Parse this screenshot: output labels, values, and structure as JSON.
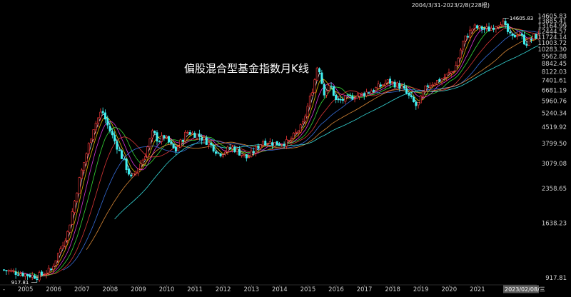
{
  "chart_data": {
    "type": "candlestick",
    "title": "偏股混合型基金指数月K线",
    "range_label": "2004/3/31-2023/2/8(228根)",
    "y_scale": "log",
    "ylim": [
      872,
      15600
    ],
    "y_ticks": [
      917.81,
      1638.23,
      2358.65,
      3079.08,
      3799.5,
      4519.92,
      5240.34,
      5960.76,
      6681.19,
      7401.61,
      8122.03,
      8842.45,
      9562.88,
      10283.3,
      11003.72,
      11724.14,
      12444.57,
      13164.99,
      13885.41,
      14605.83
    ],
    "y_tick_labels": [
      "917.81",
      "1638.23",
      "2358.65",
      "3079.08",
      "3799.50",
      "4519.92",
      "5240.34",
      "5960.76",
      "6681.19",
      "7401.61",
      "8122.03",
      "8842.45",
      "9562.88",
      "10283.30",
      "11003.72",
      "11724.14",
      "12444.57",
      "13164.99",
      "13885.41",
      "14605.83"
    ],
    "x_ticks": [
      "2005",
      "2006",
      "2007",
      "2008",
      "2009",
      "2010",
      "2011",
      "2012",
      "2013",
      "2014",
      "2015",
      "2016",
      "2017",
      "2018",
      "2019",
      "2020",
      "2021"
    ],
    "x_first_label": "-",
    "x_last_label": "2023/02/08/三",
    "annotations": {
      "high_label": "14605.83",
      "low_label": "917.81"
    },
    "up_color": "#ff3b3b",
    "down_color": "#3ff0f0",
    "ma_colors": [
      "#ffffff",
      "#ffd700",
      "#ff40ff",
      "#40ff40",
      "#ff4040",
      "#4080ff",
      "#ffa040",
      "#40ffff"
    ],
    "anchors": [
      {
        "t": 2004.25,
        "v": 1000
      },
      {
        "t": 2005.5,
        "v": 930
      },
      {
        "t": 2006.0,
        "v": 1000
      },
      {
        "t": 2006.6,
        "v": 1500
      },
      {
        "t": 2007.0,
        "v": 2600
      },
      {
        "t": 2007.5,
        "v": 4500
      },
      {
        "t": 2007.8,
        "v": 5400
      },
      {
        "t": 2008.0,
        "v": 4600
      },
      {
        "t": 2008.5,
        "v": 3300
      },
      {
        "t": 2008.85,
        "v": 2600
      },
      {
        "t": 2009.3,
        "v": 3300
      },
      {
        "t": 2009.6,
        "v": 4300
      },
      {
        "t": 2009.8,
        "v": 3900
      },
      {
        "t": 2010.0,
        "v": 4100
      },
      {
        "t": 2010.4,
        "v": 3500
      },
      {
        "t": 2010.8,
        "v": 4300
      },
      {
        "t": 2011.2,
        "v": 4150
      },
      {
        "t": 2011.6,
        "v": 3800
      },
      {
        "t": 2011.95,
        "v": 3400
      },
      {
        "t": 2012.4,
        "v": 3650
      },
      {
        "t": 2012.95,
        "v": 3250
      },
      {
        "t": 2013.5,
        "v": 3900
      },
      {
        "t": 2013.95,
        "v": 3800
      },
      {
        "t": 2014.4,
        "v": 3850
      },
      {
        "t": 2014.9,
        "v": 4600
      },
      {
        "t": 2015.3,
        "v": 7100
      },
      {
        "t": 2015.45,
        "v": 9000
      },
      {
        "t": 2015.65,
        "v": 6500
      },
      {
        "t": 2015.9,
        "v": 7000
      },
      {
        "t": 2016.1,
        "v": 5900
      },
      {
        "t": 2016.6,
        "v": 6200
      },
      {
        "t": 2017.0,
        "v": 6400
      },
      {
        "t": 2017.5,
        "v": 6800
      },
      {
        "t": 2017.95,
        "v": 7350
      },
      {
        "t": 2018.4,
        "v": 6900
      },
      {
        "t": 2018.95,
        "v": 5600
      },
      {
        "t": 2019.3,
        "v": 7000
      },
      {
        "t": 2019.9,
        "v": 7600
      },
      {
        "t": 2020.3,
        "v": 8400
      },
      {
        "t": 2020.6,
        "v": 11300
      },
      {
        "t": 2020.95,
        "v": 13000
      },
      {
        "t": 2021.5,
        "v": 12700
      },
      {
        "t": 2021.95,
        "v": 13900
      },
      {
        "t": 2022.3,
        "v": 11500
      },
      {
        "t": 2022.55,
        "v": 12400
      },
      {
        "t": 2022.8,
        "v": 10900
      },
      {
        "t": 2023.1,
        "v": 11800
      }
    ]
  }
}
